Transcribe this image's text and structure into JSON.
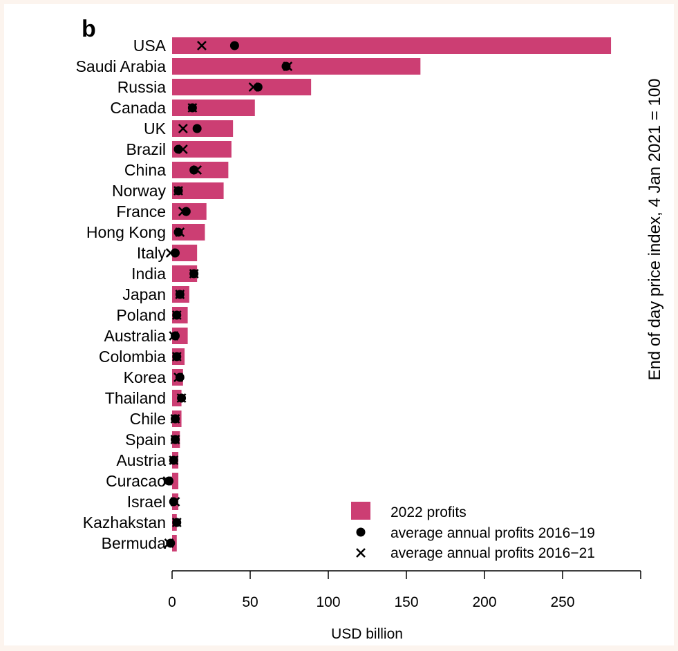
{
  "chart_data": {
    "type": "bar",
    "orientation": "horizontal",
    "panel_label": "b",
    "title": "",
    "xlabel": "USD billion",
    "ylabel": "",
    "side_title": "End of day price index, 4 Jan 2021 = 100",
    "xlim": [
      0,
      300
    ],
    "xticks": [
      0,
      50,
      100,
      150,
      200,
      250
    ],
    "grid": false,
    "legend_position": "bottom-right",
    "categories": [
      "USA",
      "Saudi Arabia",
      "Russia",
      "Canada",
      "UK",
      "Brazil",
      "China",
      "Norway",
      "France",
      "Hong Kong",
      "Italy",
      "India",
      "Japan",
      "Poland",
      "Australia",
      "Colombia",
      "Korea",
      "Thailand",
      "Chile",
      "Spain",
      "Austria",
      "Curacao",
      "Israel",
      "Kazhakstan",
      "Bermuda"
    ],
    "series": [
      {
        "name": "2022 profits",
        "kind": "bar",
        "color": "#cc3e73",
        "values": [
          281,
          159,
          89,
          53,
          39,
          38,
          36,
          33,
          22,
          21,
          16,
          16,
          11,
          10,
          10,
          8,
          7,
          6,
          6,
          5,
          4,
          4,
          4,
          3,
          3
        ]
      },
      {
        "name": "average annual profits 2016−19",
        "kind": "point",
        "marker": "dot",
        "values": [
          40,
          73,
          55,
          13,
          16,
          4,
          14,
          4,
          9,
          4,
          2,
          14,
          5,
          3,
          2,
          3,
          5,
          6,
          2,
          2,
          1,
          -2,
          1,
          3,
          -1
        ]
      },
      {
        "name": "average annual profits 2016−21",
        "kind": "point",
        "marker": "cross",
        "values": [
          19,
          74,
          52,
          13,
          7,
          7,
          16,
          4,
          7,
          5,
          -1,
          14,
          5,
          3,
          1,
          3,
          4,
          6,
          2,
          2,
          1,
          -3,
          2,
          3,
          -2
        ]
      }
    ]
  }
}
